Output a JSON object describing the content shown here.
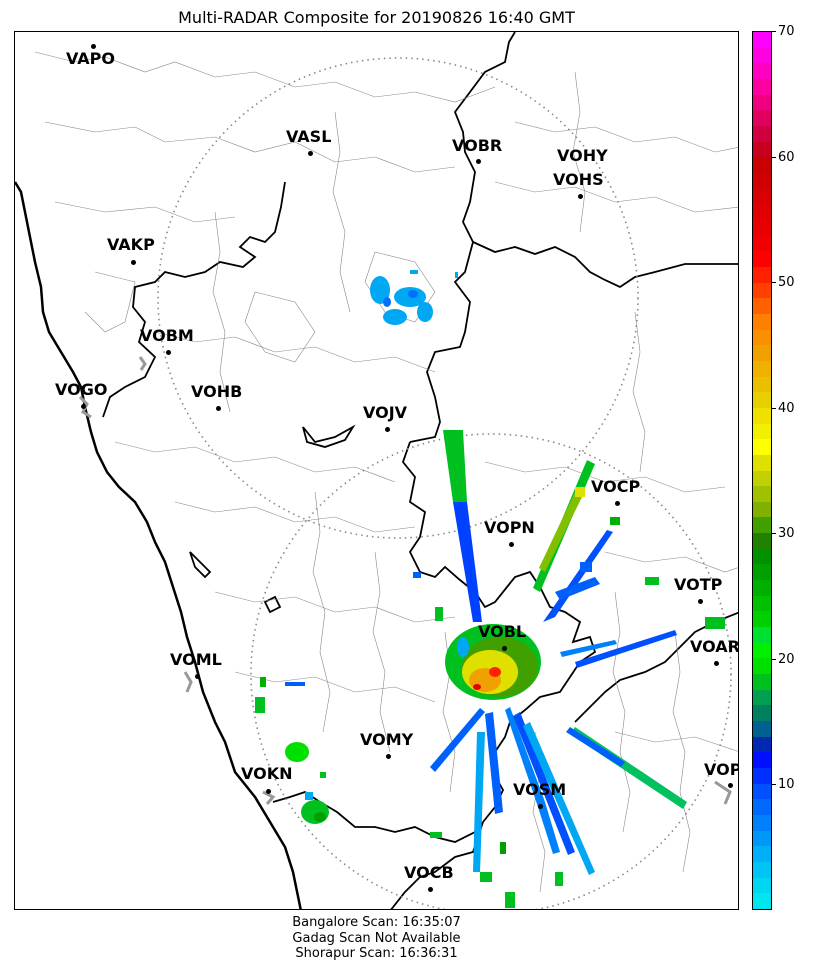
{
  "title": "Multi-RADAR Composite for 20190826 16:40 GMT",
  "airports": [
    {
      "code": "VAPO"
    },
    {
      "code": "VASL"
    },
    {
      "code": "VOBR"
    },
    {
      "code": "VOHY"
    },
    {
      "code": "VOHS"
    },
    {
      "code": "VAKP"
    },
    {
      "code": "VOBM"
    },
    {
      "code": "VOGO"
    },
    {
      "code": "VOHB"
    },
    {
      "code": "VOJV"
    },
    {
      "code": "VOCP"
    },
    {
      "code": "VOPN"
    },
    {
      "code": "VOTP"
    },
    {
      "code": "VOBL"
    },
    {
      "code": "VOAR"
    },
    {
      "code": "VOML"
    },
    {
      "code": "VOMY"
    },
    {
      "code": "VOKN"
    },
    {
      "code": "VOPC"
    },
    {
      "code": "VOSM"
    },
    {
      "code": "VOCB"
    }
  ],
  "colorbar": {
    "min": 0,
    "max": 70,
    "ticks": [
      "10",
      "20",
      "30",
      "40",
      "50",
      "60",
      "70"
    ],
    "colors": [
      "#00e5f0",
      "#00d5f2",
      "#00c4f4",
      "#00b0f6",
      "#0098f8",
      "#0080fa",
      "#0068fc",
      "#0050fe",
      "#0030ff",
      "#0010ff",
      "#0028b0",
      "#00608f",
      "#008060",
      "#00a050",
      "#00c020",
      "#00e000",
      "#00f000",
      "#00e030",
      "#00d000",
      "#00c000",
      "#00b000",
      "#00a000",
      "#009000",
      "#208000",
      "#40a000",
      "#80b000",
      "#a0c000",
      "#c0d000",
      "#e0e000",
      "#ffff00",
      "#f0f000",
      "#f0e000",
      "#e8d000",
      "#e8c000",
      "#f0b000",
      "#f0a000",
      "#f89000",
      "#ff8000",
      "#ff6000",
      "#ff4000",
      "#ff2000",
      "#ff0000",
      "#f00000",
      "#e80000",
      "#e00000",
      "#d80000",
      "#d00000",
      "#c80000",
      "#c80020",
      "#d00040",
      "#e00060",
      "#f00080",
      "#ff00a0",
      "#ff00c0",
      "#ff00e0",
      "#ff00ff"
    ]
  },
  "footer": {
    "line1": "Bangalore Scan: 16:35:07",
    "line2": "Gadag Scan Not Available",
    "line3": "Shorapur Scan: 16:36:31"
  }
}
